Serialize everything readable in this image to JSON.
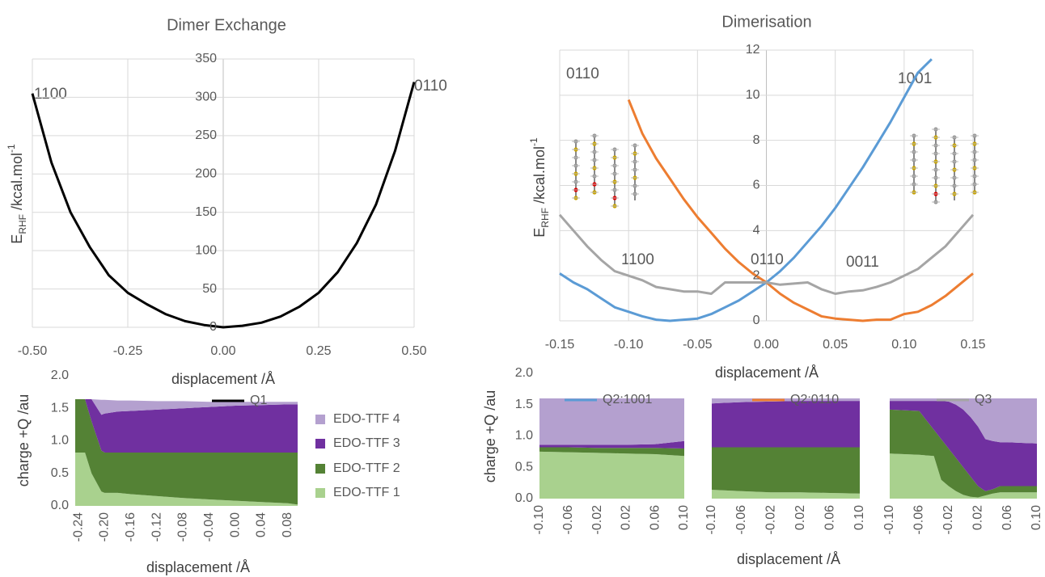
{
  "chart_data": [
    {
      "type": "line",
      "title": "Dimer Exchange",
      "xlabel": "displacement /Å",
      "ylabel": {
        "text": "E",
        "sub": "RHF",
        "rest": " /kcal.mol",
        "sup": "-1"
      },
      "x": [
        -0.5,
        -0.45,
        -0.4,
        -0.35,
        -0.3,
        -0.25,
        -0.2,
        -0.15,
        -0.1,
        -0.05,
        0,
        0.05,
        0.1,
        0.15,
        0.2,
        0.25,
        0.3,
        0.35,
        0.4,
        0.45,
        0.5
      ],
      "series": [
        {
          "name": "Q1",
          "color": "#000000",
          "values": [
            305,
            215,
            150,
            105,
            68,
            45,
            30,
            17,
            8,
            3,
            0,
            2,
            6,
            14,
            27,
            45,
            72,
            110,
            160,
            230,
            320
          ]
        }
      ],
      "xlim": [
        -0.5,
        0.5
      ],
      "xticks": [
        {
          "value": -0.5,
          "label": "-0.50"
        },
        -0.25,
        {
          "value": 0,
          "label": "0.00"
        },
        0.25,
        {
          "value": 0.5,
          "label": "0.50"
        }
      ],
      "ylim": [
        0,
        350
      ],
      "yticks": [
        0,
        50,
        100,
        150,
        200,
        250,
        300,
        350
      ],
      "grid": true,
      "annotations": [
        {
          "text": "1100",
          "color": "#000000"
        },
        {
          "text": "0110",
          "color": "#000000"
        }
      ]
    },
    {
      "type": "line",
      "title": "Dimerisation",
      "xlabel": "displacement /Å",
      "ylabel": {
        "text": "E",
        "sub": "RHF",
        "rest": " /kcal.mol",
        "sup": "-1"
      },
      "x": [
        -0.15,
        -0.14,
        -0.13,
        -0.12,
        -0.11,
        -0.1,
        -0.09,
        -0.08,
        -0.07,
        -0.06,
        -0.05,
        -0.04,
        -0.03,
        -0.02,
        -0.01,
        0,
        0.01,
        0.02,
        0.03,
        0.04,
        0.05,
        0.06,
        0.07,
        0.08,
        0.09,
        0.1,
        0.11,
        0.12,
        0.13,
        0.14,
        0.15
      ],
      "series": [
        {
          "name": "Q2:1001",
          "color": "#5b9bd5",
          "values": [
            2.1,
            1.7,
            1.4,
            1.0,
            0.6,
            0.4,
            0.2,
            0.05,
            0,
            0.05,
            0.1,
            0.3,
            0.6,
            0.9,
            1.3,
            1.7,
            2.2,
            2.8,
            3.5,
            4.2,
            5.0,
            5.9,
            6.8,
            7.8,
            8.8,
            9.9,
            11.0,
            11.6,
            null,
            null,
            null
          ]
        },
        {
          "name": "Q2:0110",
          "color": "#ed7d31",
          "values": [
            null,
            null,
            null,
            null,
            null,
            9.8,
            8.3,
            7.2,
            6.3,
            5.4,
            4.6,
            3.9,
            3.2,
            2.6,
            2.1,
            1.7,
            1.2,
            0.8,
            0.5,
            0.2,
            0.1,
            0.05,
            0,
            0.05,
            0.05,
            0.3,
            0.4,
            0.7,
            1.1,
            1.6,
            2.1
          ]
        },
        {
          "name": "Q3",
          "color": "#a5a5a5",
          "values": [
            4.7,
            4.0,
            3.3,
            2.7,
            2.2,
            2.0,
            1.8,
            1.5,
            1.4,
            1.3,
            1.3,
            1.2,
            1.7,
            1.7,
            1.7,
            1.7,
            1.6,
            1.65,
            1.7,
            1.4,
            1.2,
            1.3,
            1.35,
            1.5,
            1.7,
            2.0,
            2.3,
            2.8,
            3.3,
            4.0,
            4.7
          ]
        }
      ],
      "xlim": [
        -0.15,
        0.15
      ],
      "xticks": [
        -0.15,
        {
          "value": -0.1,
          "label": "-0.10"
        },
        -0.05,
        {
          "value": 0,
          "label": "0.00"
        },
        0.05,
        {
          "value": 0.1,
          "label": "0.10"
        },
        0.15
      ],
      "ylim": [
        0,
        12
      ],
      "yticks": [
        0,
        2,
        4,
        6,
        8,
        10,
        12
      ],
      "grid": true,
      "annotations": [
        {
          "text": "0110",
          "color": "#ed7d31"
        },
        {
          "text": "1001",
          "color": "#5b9bd5"
        },
        {
          "text": "1100",
          "color": "#808080"
        },
        {
          "text": "0110",
          "color": "#808080"
        },
        {
          "text": "0011",
          "color": "#808080"
        }
      ]
    },
    {
      "type": "area",
      "stacked": true,
      "xlabel": "displacement /Å",
      "ylabel": "charge +Q /au",
      "x": [
        -0.245,
        -0.23,
        -0.22,
        -0.205,
        -0.2,
        -0.18,
        -0.16,
        -0.12,
        -0.08,
        -0.04,
        0,
        0.04,
        0.08,
        0.095
      ],
      "series": [
        {
          "name": "EDO-TTF 1",
          "color": "#a9d18e",
          "values": [
            0.82,
            0.82,
            0.5,
            0.22,
            0.2,
            0.2,
            0.18,
            0.15,
            0.12,
            0.1,
            0.08,
            0.06,
            0.04,
            0.02
          ]
        },
        {
          "name": "EDO-TTF 2",
          "color": "#548235",
          "values": [
            0.82,
            0.82,
            0.8,
            0.63,
            0.62,
            0.62,
            0.64,
            0.67,
            0.7,
            0.72,
            0.74,
            0.76,
            0.78,
            0.8
          ]
        },
        {
          "name": "EDO-TTF 3",
          "color": "#7030a0",
          "values": [
            0,
            0,
            0.34,
            0.55,
            0.6,
            0.63,
            0.64,
            0.66,
            0.68,
            0.7,
            0.72,
            0.73,
            0.74,
            0.74
          ]
        },
        {
          "name": "EDO-TTF 4",
          "color": "#b4a0cf",
          "values": [
            0,
            0,
            0,
            0.23,
            0.21,
            0.17,
            0.16,
            0.13,
            0.11,
            0.08,
            0.06,
            0.05,
            0.04,
            0.04
          ]
        }
      ],
      "xlim": [
        -0.245,
        0.095
      ],
      "xticks": [
        -0.24,
        {
          "value": -0.2,
          "label": "-0.20"
        },
        -0.16,
        -0.12,
        -0.08,
        -0.04,
        {
          "value": 0,
          "label": "0.00"
        },
        0.04,
        0.08
      ],
      "ylim": [
        0,
        2
      ],
      "yticks": [
        {
          "value": 0,
          "label": "0.0"
        },
        0.5,
        {
          "value": 1,
          "label": "1.0"
        },
        1.5,
        {
          "value": 2,
          "label": "2.0"
        }
      ]
    },
    {
      "type": "area",
      "stacked": true,
      "ylabel": "charge +Q /au",
      "x": [
        -0.1,
        -0.06,
        -0.02,
        0.02,
        0.06,
        0.1
      ],
      "series": [
        {
          "color": "#a9d18e",
          "values": [
            0.75,
            0.74,
            0.73,
            0.72,
            0.71,
            0.68
          ]
        },
        {
          "color": "#548235",
          "values": [
            0.07,
            0.08,
            0.08,
            0.09,
            0.1,
            0.12
          ]
        },
        {
          "color": "#7030a0",
          "values": [
            0.04,
            0.04,
            0.05,
            0.05,
            0.06,
            0.12
          ]
        },
        {
          "color": "#b4a0cf",
          "values": [
            0.74,
            0.74,
            0.74,
            0.74,
            0.73,
            0.68
          ]
        }
      ],
      "xlim": [
        -0.1,
        0.1
      ],
      "xticks": [
        {
          "value": -0.1,
          "label": "-0.10"
        },
        -0.06,
        -0.02,
        0.02,
        0.06,
        {
          "value": 0.1,
          "label": "0.10"
        }
      ],
      "ylim": [
        0,
        2
      ],
      "yticks": [
        {
          "value": 0,
          "label": "0.0"
        },
        0.5,
        {
          "value": 1,
          "label": "1.0"
        },
        1.5,
        {
          "value": 2,
          "label": "2.0"
        }
      ]
    },
    {
      "type": "area",
      "stacked": true,
      "xlabel": "displacement /Å",
      "x": [
        -0.1,
        -0.06,
        -0.02,
        0.02,
        0.06,
        0.1
      ],
      "series": [
        {
          "color": "#a9d18e",
          "values": [
            0.14,
            0.12,
            0.1,
            0.1,
            0.09,
            0.08
          ]
        },
        {
          "color": "#548235",
          "values": [
            0.68,
            0.7,
            0.72,
            0.72,
            0.73,
            0.74
          ]
        },
        {
          "color": "#7030a0",
          "values": [
            0.7,
            0.72,
            0.73,
            0.74,
            0.74,
            0.74
          ]
        },
        {
          "color": "#b4a0cf",
          "values": [
            0.08,
            0.06,
            0.05,
            0.04,
            0.04,
            0.04
          ]
        }
      ],
      "xlim": [
        -0.1,
        0.1
      ],
      "xticks": [
        {
          "value": -0.1,
          "label": "-0.10"
        },
        -0.06,
        -0.02,
        0.02,
        0.06,
        {
          "value": 0.1,
          "label": "0.10"
        }
      ],
      "ylim": [
        0,
        2
      ]
    },
    {
      "type": "area",
      "stacked": true,
      "x": [
        -0.1,
        -0.06,
        -0.04,
        -0.03,
        -0.02,
        -0.01,
        0,
        0.01,
        0.02,
        0.03,
        0.04,
        0.05,
        0.06,
        0.1
      ],
      "series": [
        {
          "color": "#a9d18e",
          "values": [
            0.72,
            0.7,
            0.68,
            0.3,
            0.2,
            0.12,
            0.06,
            0.03,
            0.02,
            0.05,
            0.08,
            0.1,
            0.1,
            0.1
          ]
        },
        {
          "color": "#548235",
          "values": [
            0.7,
            0.7,
            0.42,
            0.65,
            0.6,
            0.53,
            0.44,
            0.32,
            0.18,
            0.07,
            0.07,
            0.1,
            0.1,
            0.1
          ]
        },
        {
          "color": "#7030a0",
          "values": [
            0.14,
            0.16,
            0.46,
            0.61,
            0.75,
            0.85,
            0.92,
            0.95,
            0.95,
            0.83,
            0.77,
            0.7,
            0.7,
            0.68
          ]
        },
        {
          "color": "#b4a0cf",
          "values": [
            0.04,
            0.04,
            0.04,
            0.04,
            0.05,
            0.1,
            0.18,
            0.3,
            0.45,
            0.65,
            0.68,
            0.7,
            0.7,
            0.72
          ]
        }
      ],
      "xlim": [
        -0.1,
        0.1
      ],
      "xticks": [
        {
          "value": -0.1,
          "label": "-0.10"
        },
        -0.06,
        -0.02,
        0.02,
        0.06,
        {
          "value": 0.1,
          "label": "0.10"
        }
      ],
      "ylim": [
        0,
        2
      ]
    }
  ]
}
